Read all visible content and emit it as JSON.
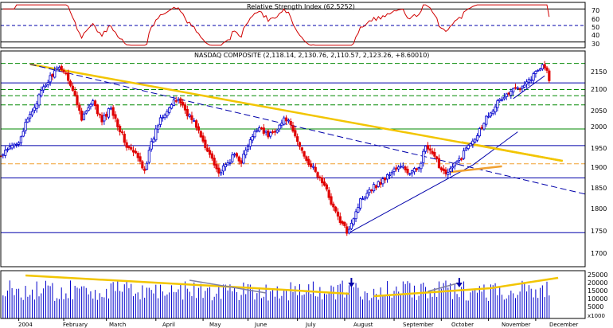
{
  "colors": {
    "background": "#ffffff",
    "frame": "#000000",
    "up_candle": "#0000cc",
    "down_candle": "#e00000",
    "rsi_line": "#d00000",
    "volume_bars": "#0000cc",
    "trend_yellow": "#f2c500",
    "guide_blue": "#0000aa",
    "guide_green": "#008800",
    "guide_orange": "#f0a030",
    "volume_trend_gray": "#8080a0"
  },
  "rsi_panel": {
    "title": "Relative Strength Index (62.5252)",
    "value": 62.5252,
    "ylim": [
      23,
      78
    ],
    "ticks": [
      "70",
      "60",
      "50",
      "40",
      "30"
    ],
    "reference_lines": [
      70,
      50,
      30
    ],
    "reference_styles": [
      "solid",
      "dashed",
      "solid"
    ]
  },
  "price_panel": {
    "title": "NASDAQ COMPOSITE (2,118.14, 2,130.76, 2,110.57, 2,123.26, +8.60010)",
    "ylim": [
      1670,
      2190
    ],
    "ticks": [
      "2150",
      "2100",
      "2050",
      "2000",
      "1950",
      "1900",
      "1850",
      "1800",
      "1750",
      "1700"
    ]
  },
  "volume_panel": {
    "ylim": [
      0,
      30000
    ],
    "ticks": [
      "25000",
      "20000",
      "15000",
      "10000",
      "5000"
    ],
    "unit": "x1000"
  },
  "x_axis": {
    "labels": [
      "2004",
      "February",
      "March",
      "April",
      "May",
      "June",
      "July",
      "August",
      "September",
      "October",
      "November",
      "December"
    ],
    "label_day_index": [
      0,
      20,
      39,
      61,
      82,
      102,
      124,
      145,
      167,
      188,
      209,
      230
    ]
  },
  "chart_data": {
    "type": "candlestick",
    "title": "NASDAQ COMPOSITE (2,118.14, 2,130.76, 2,110.57, 2,123.26, +8.60010)",
    "x_range": [
      -8,
      252
    ],
    "anchors": [
      [
        -8,
        1935
      ],
      [
        0,
        1975
      ],
      [
        5,
        2035
      ],
      [
        10,
        2090
      ],
      [
        15,
        2135
      ],
      [
        19,
        2150
      ],
      [
        22,
        2125
      ],
      [
        25,
        2080
      ],
      [
        28,
        2030
      ],
      [
        33,
        2065
      ],
      [
        37,
        2020
      ],
      [
        41,
        2055
      ],
      [
        45,
        2000
      ],
      [
        48,
        1960
      ],
      [
        52,
        1940
      ],
      [
        56,
        1905
      ],
      [
        59,
        1965
      ],
      [
        63,
        2030
      ],
      [
        67,
        2055
      ],
      [
        71,
        2075
      ],
      [
        75,
        2040
      ],
      [
        79,
        2010
      ],
      [
        83,
        1955
      ],
      [
        86,
        1935
      ],
      [
        89,
        1895
      ],
      [
        92,
        1912
      ],
      [
        96,
        1940
      ],
      [
        99,
        1925
      ],
      [
        103,
        1972
      ],
      [
        107,
        2010
      ],
      [
        111,
        1985
      ],
      [
        115,
        2005
      ],
      [
        119,
        2028
      ],
      [
        122,
        1995
      ],
      [
        125,
        1960
      ],
      [
        128,
        1930
      ],
      [
        131,
        1905
      ],
      [
        135,
        1875
      ],
      [
        138,
        1840
      ],
      [
        141,
        1800
      ],
      [
        144,
        1770
      ],
      [
        146,
        1755
      ],
      [
        149,
        1790
      ],
      [
        152,
        1830
      ],
      [
        156,
        1858
      ],
      [
        160,
        1870
      ],
      [
        164,
        1888
      ],
      [
        167,
        1905
      ],
      [
        171,
        1910
      ],
      [
        174,
        1893
      ],
      [
        177,
        1905
      ],
      [
        179,
        1925
      ],
      [
        181,
        1960
      ],
      [
        183,
        1945
      ],
      [
        186,
        1925
      ],
      [
        188,
        1905
      ],
      [
        191,
        1898
      ],
      [
        194,
        1915
      ],
      [
        197,
        1935
      ],
      [
        200,
        1965
      ],
      [
        204,
        1990
      ],
      [
        208,
        2030
      ],
      [
        212,
        2060
      ],
      [
        216,
        2080
      ],
      [
        220,
        2095
      ],
      [
        224,
        2110
      ],
      [
        228,
        2125
      ],
      [
        231,
        2145
      ],
      [
        233,
        2160
      ],
      [
        235,
        2140
      ],
      [
        236,
        2123
      ]
    ],
    "volume_trendlines": [
      [
        [
          3,
          27000
        ],
        [
          118,
          18000
        ],
        [
          147,
          15500
        ]
      ],
      [
        [
          158,
          14000
        ],
        [
          210,
          19000
        ],
        [
          240,
          25500
        ]
      ],
      [
        [
          76,
          24000
        ],
        [
          110,
          16000
        ]
      ],
      [
        [
          182,
          17000
        ],
        [
          195,
          22000
        ]
      ]
    ],
    "volume_arrows_day": [
      148,
      196
    ],
    "trendlines": [
      {
        "color": "yellow",
        "points": [
          [
            5,
            2158
          ],
          [
            242,
            1925
          ]
        ]
      },
      {
        "color": "blue-dashed",
        "points": [
          [
            5,
            2158
          ],
          [
            252,
            1845
          ]
        ]
      },
      {
        "color": "blue",
        "points": [
          [
            147,
            1752
          ],
          [
            202,
            1915
          ]
        ]
      },
      {
        "color": "blue",
        "points": [
          [
            202,
            1915
          ],
          [
            222,
            1995
          ]
        ]
      },
      {
        "color": "blue",
        "points": [
          [
            220,
            2075
          ],
          [
            234,
            2130
          ]
        ]
      },
      {
        "color": "yellow",
        "points": [
          [
            197,
            1970
          ],
          [
            242,
            1925
          ]
        ]
      },
      {
        "color": "orange",
        "points": [
          [
            192,
            1898
          ],
          [
            215,
            1912
          ]
        ]
      }
    ],
    "horizontal_lines": [
      {
        "y": 2160,
        "color": "green",
        "dash": true
      },
      {
        "y": 2113,
        "color": "blue",
        "dash": false
      },
      {
        "y": 2097,
        "color": "green",
        "dash": true
      },
      {
        "y": 2082,
        "color": "green",
        "dash": true
      },
      {
        "y": 2060,
        "color": "green",
        "dash": true
      },
      {
        "y": 2002,
        "color": "green",
        "dash": false
      },
      {
        "y": 1962,
        "color": "blue",
        "dash": false
      },
      {
        "y": 1918,
        "color": "orange",
        "dash": true
      },
      {
        "y": 1884,
        "color": "blue",
        "dash": false
      },
      {
        "y": 1752,
        "color": "blue",
        "dash": false
      }
    ]
  }
}
